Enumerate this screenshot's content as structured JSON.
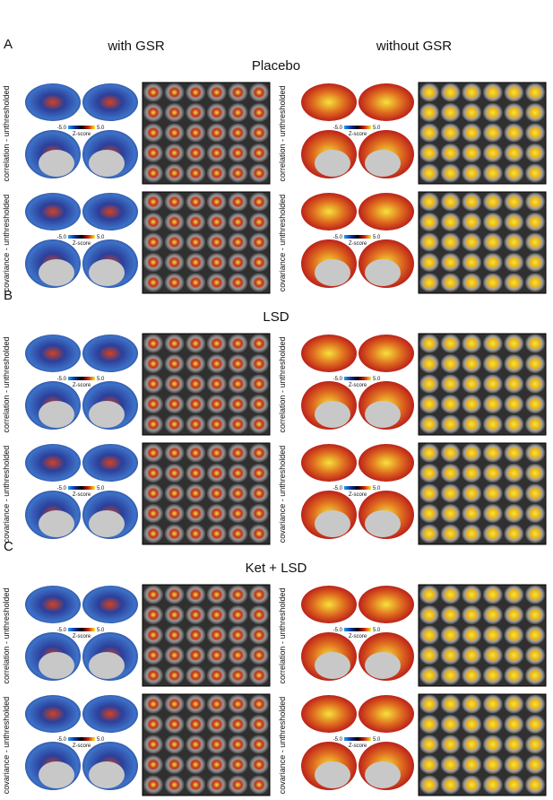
{
  "columns": [
    "with GSR",
    "without GSR"
  ],
  "colorbar": {
    "min": "-5.0",
    "max": "5.0",
    "label": "Z-score"
  },
  "sections": [
    {
      "letter": "A",
      "title": "Placebo",
      "rows": [
        "correlation - unthresholded",
        "covariance - unthresholded"
      ]
    },
    {
      "letter": "B",
      "title": "LSD",
      "rows": [
        "correlation - unthresholded",
        "covariance - unthresholded"
      ]
    },
    {
      "letter": "C",
      "title": "Ket + LSD",
      "rows": [
        "correlation - unthresholded",
        "covariance - unthresholded"
      ]
    }
  ]
}
